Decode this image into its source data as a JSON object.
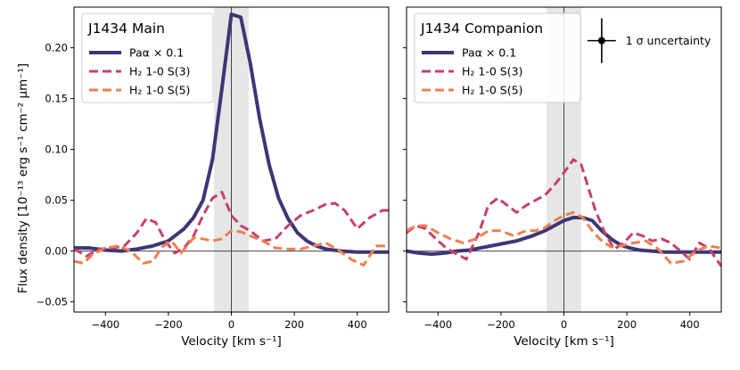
{
  "figure": {
    "ylabel": "Flux density [10⁻¹³ erg s⁻¹ cm⁻² μm⁻¹]",
    "xlabel": "Velocity [km s⁻¹]"
  },
  "chart_data": [
    {
      "type": "line",
      "title": "J1434 Main",
      "xlabel": "Velocity [km s⁻¹]",
      "ylabel": "Flux density [10⁻¹³ erg s⁻¹ cm⁻² μm⁻¹]",
      "xlim": [
        -500,
        500
      ],
      "ylim": [
        -0.06,
        0.24
      ],
      "xticks": [
        -400,
        -200,
        0,
        200,
        400
      ],
      "xtick_labels": [
        "−400",
        "−200",
        "0",
        "200",
        "400"
      ],
      "yticks": [
        -0.05,
        0.0,
        0.05,
        0.1,
        0.15,
        0.2
      ],
      "ytick_labels": [
        "−0.05",
        "0.00",
        "0.05",
        "0.10",
        "0.15",
        "0.20"
      ],
      "shaded_band": [
        -55,
        55
      ],
      "vline": 0,
      "hline": 0,
      "legend": "top-left",
      "series": [
        {
          "name": "Paα × 0.1",
          "color": "#3f3576",
          "style": "solid",
          "x": [
            -500,
            -450,
            -400,
            -350,
            -300,
            -250,
            -200,
            -150,
            -120,
            -90,
            -60,
            -30,
            0,
            30,
            60,
            90,
            120,
            150,
            180,
            210,
            240,
            270,
            300,
            350,
            400,
            450,
            500
          ],
          "y": [
            0.003,
            0.003,
            0.001,
            0.0,
            0.002,
            0.005,
            0.01,
            0.022,
            0.033,
            0.05,
            0.09,
            0.16,
            0.233,
            0.23,
            0.185,
            0.13,
            0.085,
            0.052,
            0.032,
            0.018,
            0.01,
            0.005,
            0.002,
            0.0,
            -0.001,
            -0.001,
            -0.001
          ]
        },
        {
          "name": "H₂ 1-0 S(3)",
          "color": "#c63f6e",
          "style": "dashed",
          "x": [
            -500,
            -460,
            -420,
            -380,
            -340,
            -300,
            -270,
            -240,
            -210,
            -180,
            -150,
            -120,
            -90,
            -60,
            -30,
            0,
            30,
            60,
            100,
            140,
            180,
            220,
            260,
            300,
            330,
            360,
            400,
            440,
            480,
            500
          ],
          "y": [
            0.002,
            -0.005,
            0.002,
            0.003,
            0.005,
            0.018,
            0.032,
            0.028,
            0.01,
            -0.002,
            0.003,
            0.015,
            0.035,
            0.052,
            0.058,
            0.035,
            0.025,
            0.02,
            0.01,
            0.012,
            0.025,
            0.035,
            0.04,
            0.046,
            0.047,
            0.04,
            0.022,
            0.033,
            0.04,
            0.04
          ]
        },
        {
          "name": "H₂ 1-0 S(5)",
          "color": "#ee7f50",
          "style": "dashed",
          "x": [
            -500,
            -470,
            -440,
            -400,
            -360,
            -320,
            -280,
            -250,
            -220,
            -190,
            -160,
            -120,
            -90,
            -60,
            -30,
            0,
            30,
            60,
            100,
            140,
            180,
            220,
            260,
            300,
            340,
            380,
            420,
            460,
            500
          ],
          "y": [
            -0.01,
            -0.012,
            -0.003,
            0.003,
            0.005,
            0.0,
            -0.012,
            -0.01,
            0.004,
            0.01,
            -0.002,
            0.013,
            0.012,
            0.01,
            0.012,
            0.02,
            0.019,
            0.015,
            0.01,
            0.003,
            0.002,
            0.002,
            0.005,
            0.008,
            0.001,
            -0.008,
            -0.014,
            0.005,
            0.005
          ]
        }
      ]
    },
    {
      "type": "line",
      "title": "J1434 Companion",
      "xlabel": "Velocity [km s⁻¹]",
      "xlim": [
        -500,
        500
      ],
      "ylim": [
        -0.06,
        0.24
      ],
      "xticks": [
        -400,
        -200,
        0,
        200,
        400
      ],
      "xtick_labels": [
        "−400",
        "−200",
        "0",
        "200",
        "400"
      ],
      "shaded_band": [
        -55,
        55
      ],
      "vline": 0,
      "hline": 0,
      "legend": "top-left",
      "annotation": "1 σ uncertainty",
      "uncertainty_marker": {
        "x": 120,
        "y": 0.207,
        "xerr": 45,
        "yerr": 0.022
      },
      "series": [
        {
          "name": "Paα × 0.1",
          "color": "#3f3576",
          "style": "solid",
          "x": [
            -500,
            -460,
            -420,
            -380,
            -340,
            -300,
            -250,
            -200,
            -150,
            -100,
            -60,
            -30,
            0,
            30,
            60,
            90,
            120,
            150,
            180,
            210,
            240,
            280,
            320,
            360,
            400,
            450,
            500
          ],
          "y": [
            0.0,
            -0.002,
            -0.003,
            -0.002,
            0.0,
            0.001,
            0.004,
            0.007,
            0.01,
            0.015,
            0.02,
            0.025,
            0.03,
            0.033,
            0.033,
            0.03,
            0.02,
            0.012,
            0.006,
            0.003,
            0.001,
            0.0,
            -0.001,
            -0.001,
            -0.001,
            -0.001,
            -0.001
          ]
        },
        {
          "name": "H₂ 1-0 S(3)",
          "color": "#c63f6e",
          "style": "dashed",
          "x": [
            -500,
            -470,
            -440,
            -400,
            -370,
            -340,
            -310,
            -270,
            -240,
            -210,
            -180,
            -150,
            -120,
            -90,
            -60,
            -30,
            0,
            30,
            55,
            75,
            100,
            130,
            160,
            190,
            220,
            250,
            280,
            310,
            340,
            370,
            400,
            430,
            460,
            500
          ],
          "y": [
            0.018,
            0.025,
            0.022,
            0.01,
            0.002,
            -0.003,
            -0.008,
            0.018,
            0.045,
            0.052,
            0.045,
            0.038,
            0.045,
            0.05,
            0.055,
            0.065,
            0.077,
            0.09,
            0.085,
            0.065,
            0.04,
            0.018,
            0.002,
            0.008,
            0.018,
            0.015,
            0.01,
            0.012,
            0.008,
            0.0,
            -0.008,
            0.008,
            0.003,
            -0.015
          ]
        },
        {
          "name": "H₂ 1-0 S(5)",
          "color": "#ee7f50",
          "style": "dashed",
          "x": [
            -500,
            -470,
            -440,
            -400,
            -360,
            -320,
            -280,
            -240,
            -200,
            -160,
            -120,
            -90,
            -60,
            -30,
            0,
            30,
            60,
            90,
            120,
            150,
            180,
            220,
            260,
            300,
            340,
            380,
            420,
            460,
            500
          ],
          "y": [
            0.02,
            0.025,
            0.025,
            0.018,
            0.012,
            0.008,
            0.012,
            0.02,
            0.02,
            0.015,
            0.02,
            0.02,
            0.023,
            0.03,
            0.035,
            0.038,
            0.033,
            0.02,
            0.01,
            0.004,
            0.005,
            0.008,
            0.01,
            0.002,
            -0.012,
            -0.01,
            0.0,
            0.005,
            0.003
          ]
        }
      ]
    }
  ]
}
